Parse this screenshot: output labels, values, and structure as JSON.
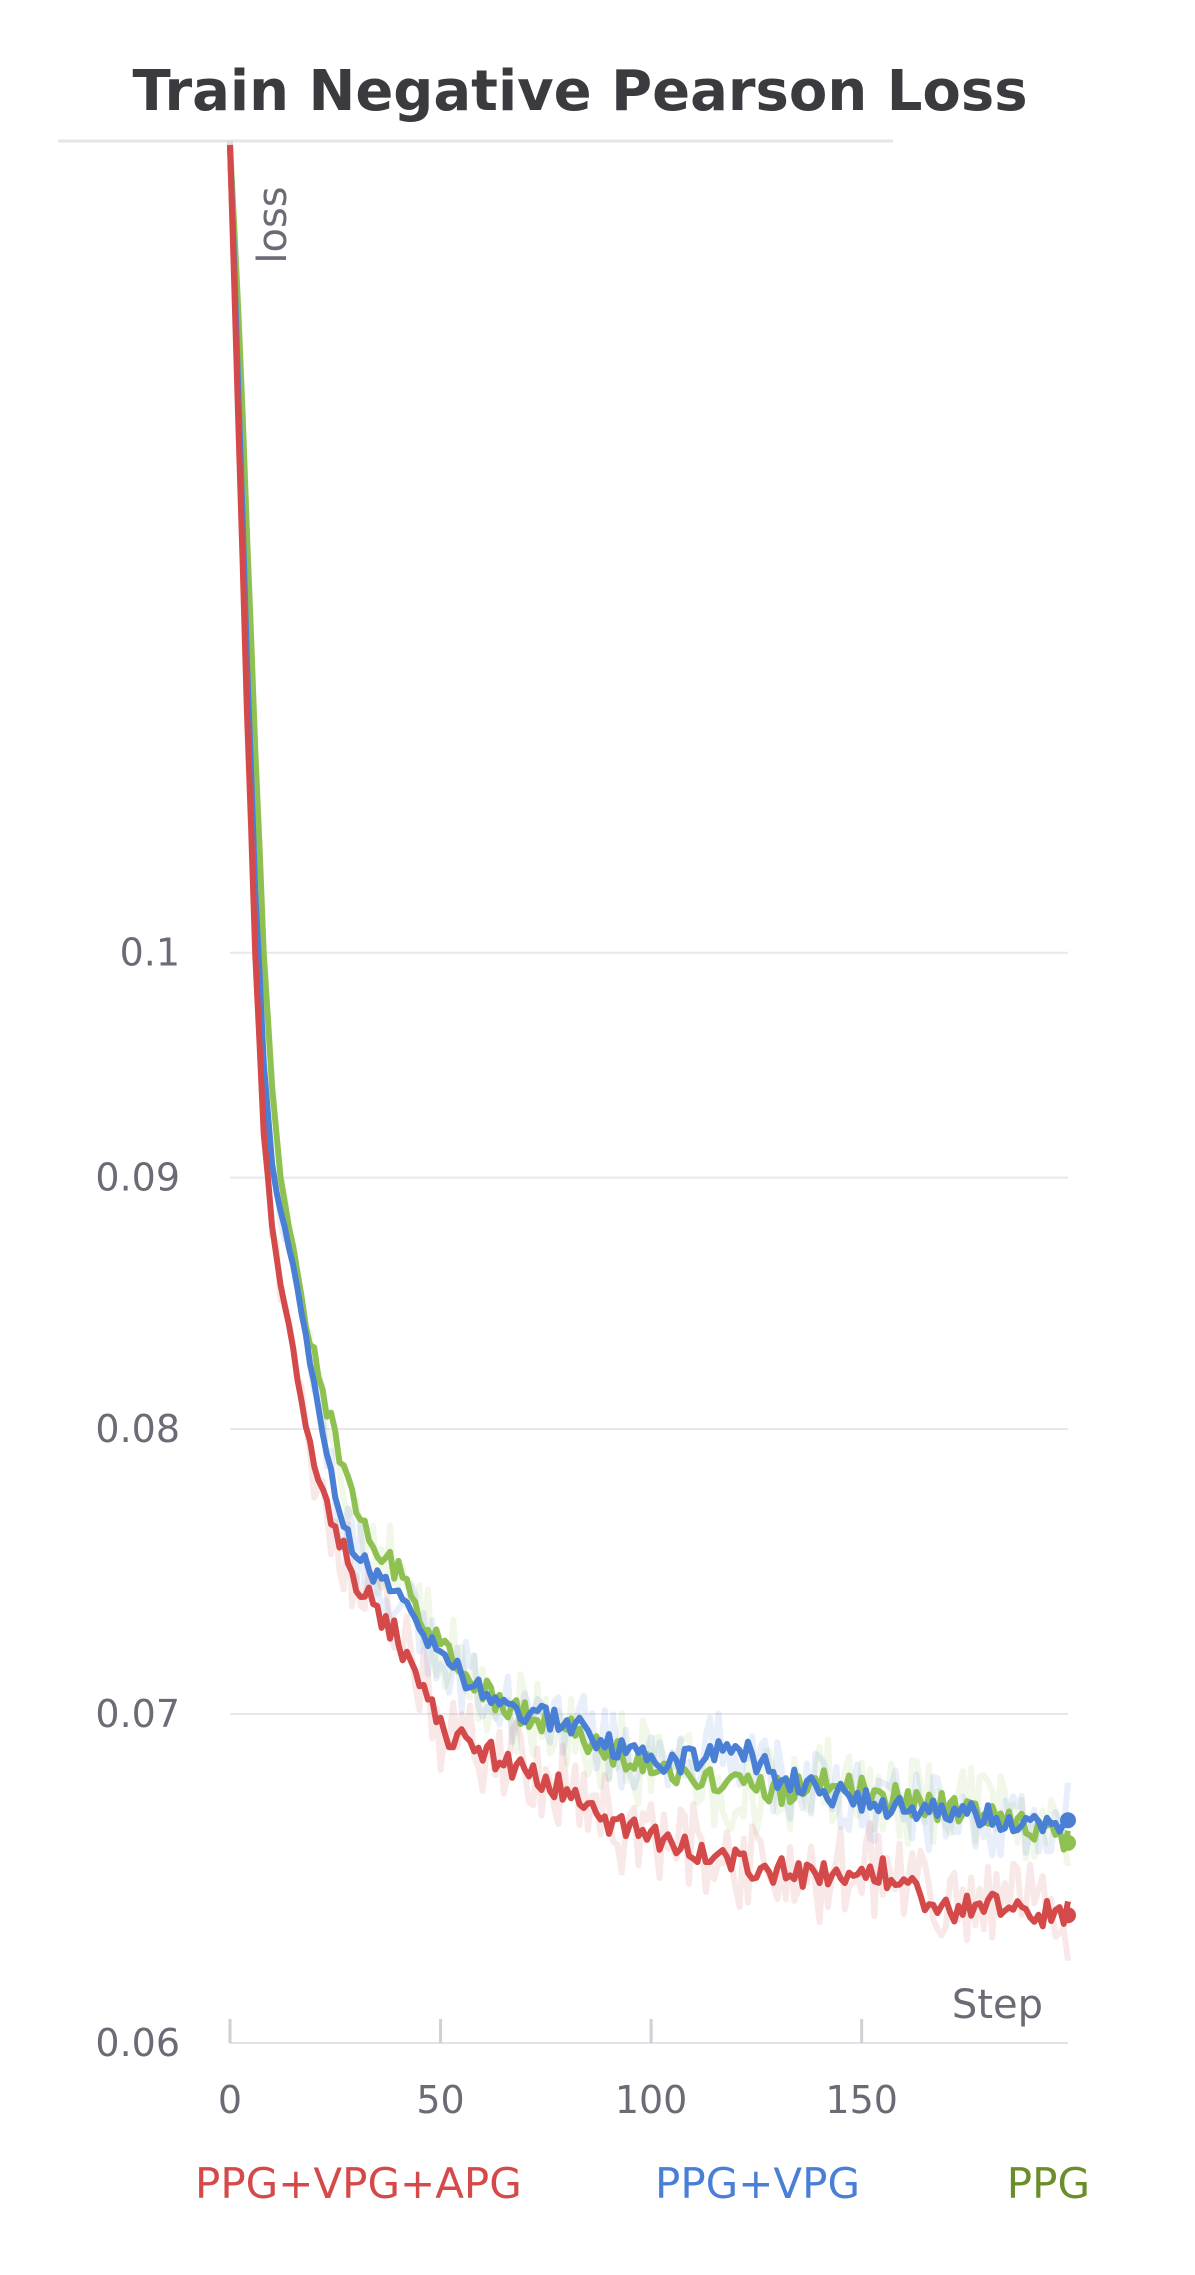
{
  "chart_data": {
    "type": "line",
    "title": "Train Negative Pearson Loss",
    "ylabel": "loss",
    "xlabel": "Step",
    "xlim": [
      0,
      199
    ],
    "ylim": [
      0.06,
      0.146
    ],
    "y_scale": "log",
    "grid": true,
    "legend_position": "bottom",
    "x_ticks": [
      0,
      50,
      100,
      150
    ],
    "y_ticks": [
      0.06,
      0.07,
      0.08,
      0.09,
      0.1
    ],
    "y_tick_labels": [
      "0.06",
      "0.07",
      "0.08",
      "0.09",
      "0.1"
    ],
    "x_tick_labels": [
      "0",
      "50",
      "100",
      "150"
    ],
    "series": [
      {
        "name": "PPG+VPG+APG",
        "color": "#d44a4a",
        "keypoints": [
          [
            0,
            0.146
          ],
          [
            2,
            0.128
          ],
          [
            4,
            0.112
          ],
          [
            6,
            0.1
          ],
          [
            8,
            0.092
          ],
          [
            10,
            0.088
          ],
          [
            12,
            0.0855
          ],
          [
            15,
            0.083
          ],
          [
            18,
            0.08
          ],
          [
            22,
            0.0775
          ],
          [
            26,
            0.076
          ],
          [
            30,
            0.0745
          ],
          [
            35,
            0.0735
          ],
          [
            40,
            0.0725
          ],
          [
            45,
            0.071
          ],
          [
            50,
            0.0695
          ],
          [
            60,
            0.0688
          ],
          [
            70,
            0.0682
          ],
          [
            80,
            0.0675
          ],
          [
            90,
            0.0665
          ],
          [
            100,
            0.066
          ],
          [
            110,
            0.0657
          ],
          [
            120,
            0.0654
          ],
          [
            130,
            0.065
          ],
          [
            140,
            0.0648
          ],
          [
            150,
            0.0652
          ],
          [
            160,
            0.0648
          ],
          [
            170,
            0.0638
          ],
          [
            180,
            0.064
          ],
          [
            190,
            0.0638
          ],
          [
            199,
            0.0637
          ]
        ],
        "noise": 0.00045,
        "end_value": 0.0637
      },
      {
        "name": "PPG+VPG",
        "color": "#4a7fd6",
        "keypoints": [
          [
            0,
            0.146
          ],
          [
            2,
            0.13
          ],
          [
            4,
            0.115
          ],
          [
            6,
            0.103
          ],
          [
            8,
            0.095
          ],
          [
            10,
            0.0905
          ],
          [
            12,
            0.0885
          ],
          [
            15,
            0.0865
          ],
          [
            18,
            0.0835
          ],
          [
            22,
            0.08
          ],
          [
            26,
            0.077
          ],
          [
            30,
            0.0755
          ],
          [
            35,
            0.0745
          ],
          [
            40,
            0.074
          ],
          [
            45,
            0.0728
          ],
          [
            50,
            0.0718
          ],
          [
            60,
            0.0708
          ],
          [
            70,
            0.07
          ],
          [
            80,
            0.0697
          ],
          [
            90,
            0.069
          ],
          [
            100,
            0.0685
          ],
          [
            110,
            0.0685
          ],
          [
            120,
            0.069
          ],
          [
            130,
            0.068
          ],
          [
            140,
            0.0675
          ],
          [
            150,
            0.0672
          ],
          [
            160,
            0.067
          ],
          [
            170,
            0.0668
          ],
          [
            180,
            0.0667
          ],
          [
            190,
            0.0665
          ],
          [
            199,
            0.0666
          ]
        ],
        "noise": 0.0004,
        "end_value": 0.0666
      },
      {
        "name": "PPG",
        "color": "#8fc152",
        "keypoints": [
          [
            0,
            0.146
          ],
          [
            2,
            0.135
          ],
          [
            4,
            0.122
          ],
          [
            6,
            0.11
          ],
          [
            8,
            0.1
          ],
          [
            10,
            0.094
          ],
          [
            12,
            0.09
          ],
          [
            15,
            0.087
          ],
          [
            18,
            0.084
          ],
          [
            22,
            0.0815
          ],
          [
            26,
            0.079
          ],
          [
            30,
            0.077
          ],
          [
            35,
            0.0755
          ],
          [
            40,
            0.0748
          ],
          [
            45,
            0.0735
          ],
          [
            50,
            0.0722
          ],
          [
            60,
            0.0708
          ],
          [
            70,
            0.07
          ],
          [
            80,
            0.0695
          ],
          [
            90,
            0.0688
          ],
          [
            100,
            0.0684
          ],
          [
            110,
            0.068
          ],
          [
            120,
            0.0677
          ],
          [
            130,
            0.0675
          ],
          [
            140,
            0.0678
          ],
          [
            150,
            0.0676
          ],
          [
            160,
            0.0672
          ],
          [
            170,
            0.067
          ],
          [
            180,
            0.0668
          ],
          [
            190,
            0.0665
          ],
          [
            199,
            0.0659
          ]
        ],
        "noise": 0.00045,
        "end_value": 0.0659
      }
    ]
  }
}
